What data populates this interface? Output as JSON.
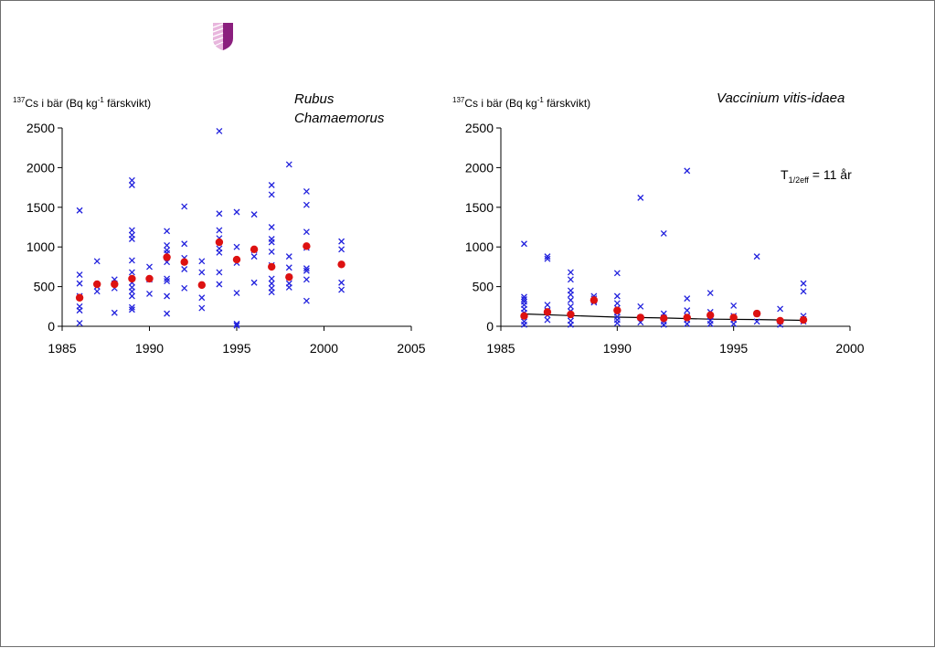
{
  "colors": {
    "individual_marker": "#2222dd",
    "mean_marker": "#dd1111",
    "fit_line": "#000000",
    "axis": "#000000",
    "logo_primary": "#8b1f7e",
    "logo_light": "#e8b6dd"
  },
  "logo": {
    "icon": "shield-logo"
  },
  "ylabel_parts": {
    "sup1": "137",
    "main": "Cs i bär (Bq kg",
    "sup2": "-1",
    "tail": " färskvikt)"
  },
  "chart_data": [
    {
      "type": "scatter",
      "title": "Rubus Chamaemorus",
      "title_lines": [
        "Rubus",
        "Chamaemorus"
      ],
      "ylabel": "137Cs i bär (Bq kg-1 färskvikt)",
      "xlim": [
        1985,
        2005
      ],
      "ylim": [
        0,
        2500
      ],
      "xticks": [
        1985,
        1990,
        1995,
        2000,
        2005
      ],
      "yticks": [
        0,
        500,
        1000,
        1500,
        2000,
        2500
      ],
      "grid": false,
      "series": [
        {
          "marker": "cross",
          "points": [
            [
              1986,
              1460
            ],
            [
              1986,
              650
            ],
            [
              1986,
              540
            ],
            [
              1986,
              380
            ],
            [
              1986,
              250
            ],
            [
              1986,
              200
            ],
            [
              1986,
              40
            ],
            [
              1987,
              820
            ],
            [
              1987,
              500
            ],
            [
              1987,
              440
            ],
            [
              1988,
              590
            ],
            [
              1988,
              540
            ],
            [
              1988,
              480
            ],
            [
              1988,
              170
            ],
            [
              1989,
              1840
            ],
            [
              1989,
              1780
            ],
            [
              1989,
              1210
            ],
            [
              1989,
              1150
            ],
            [
              1989,
              1100
            ],
            [
              1989,
              830
            ],
            [
              1989,
              680
            ],
            [
              1989,
              550
            ],
            [
              1989,
              490
            ],
            [
              1989,
              440
            ],
            [
              1989,
              380
            ],
            [
              1989,
              240
            ],
            [
              1989,
              210
            ],
            [
              1990,
              750
            ],
            [
              1990,
              590
            ],
            [
              1990,
              410
            ],
            [
              1991,
              1200
            ],
            [
              1991,
              1020
            ],
            [
              1991,
              960
            ],
            [
              1991,
              920
            ],
            [
              1991,
              810
            ],
            [
              1991,
              600
            ],
            [
              1991,
              570
            ],
            [
              1991,
              380
            ],
            [
              1991,
              160
            ],
            [
              1992,
              1510
            ],
            [
              1992,
              1040
            ],
            [
              1992,
              860
            ],
            [
              1992,
              720
            ],
            [
              1992,
              480
            ],
            [
              1993,
              820
            ],
            [
              1993,
              680
            ],
            [
              1993,
              360
            ],
            [
              1993,
              230
            ],
            [
              1994,
              2460
            ],
            [
              1994,
              1420
            ],
            [
              1994,
              1210
            ],
            [
              1994,
              1110
            ],
            [
              1994,
              980
            ],
            [
              1994,
              930
            ],
            [
              1994,
              680
            ],
            [
              1994,
              530
            ],
            [
              1995,
              1440
            ],
            [
              1995,
              1000
            ],
            [
              1995,
              800
            ],
            [
              1995,
              420
            ],
            [
              1995,
              30
            ],
            [
              1995,
              10
            ],
            [
              1996,
              1410
            ],
            [
              1996,
              960
            ],
            [
              1996,
              880
            ],
            [
              1996,
              550
            ],
            [
              1997,
              1780
            ],
            [
              1997,
              1660
            ],
            [
              1997,
              1250
            ],
            [
              1997,
              1100
            ],
            [
              1997,
              1060
            ],
            [
              1997,
              940
            ],
            [
              1997,
              770
            ],
            [
              1997,
              600
            ],
            [
              1997,
              540
            ],
            [
              1997,
              480
            ],
            [
              1997,
              430
            ],
            [
              1998,
              2040
            ],
            [
              1998,
              880
            ],
            [
              1998,
              740
            ],
            [
              1998,
              620
            ],
            [
              1998,
              540
            ],
            [
              1998,
              490
            ],
            [
              1999,
              1700
            ],
            [
              1999,
              1530
            ],
            [
              1999,
              1190
            ],
            [
              1999,
              990
            ],
            [
              1999,
              730
            ],
            [
              1999,
              700
            ],
            [
              1999,
              590
            ],
            [
              1999,
              320
            ],
            [
              2001,
              1070
            ],
            [
              2001,
              970
            ],
            [
              2001,
              550
            ],
            [
              2001,
              460
            ]
          ]
        },
        {
          "marker": "dot",
          "points": [
            [
              1986,
              360
            ],
            [
              1987,
              530
            ],
            [
              1988,
              530
            ],
            [
              1989,
              600
            ],
            [
              1990,
              600
            ],
            [
              1991,
              870
            ],
            [
              1992,
              810
            ],
            [
              1993,
              520
            ],
            [
              1994,
              1060
            ],
            [
              1995,
              840
            ],
            [
              1996,
              970
            ],
            [
              1997,
              750
            ],
            [
              1998,
              620
            ],
            [
              1999,
              1010
            ],
            [
              2001,
              780
            ]
          ]
        }
      ]
    },
    {
      "type": "scatter",
      "title": "Vaccinium vitis-idaea",
      "title_lines": [
        "Vaccinium vitis-idaea"
      ],
      "ylabel": "137Cs i bär (Bq kg-1 färskvikt)",
      "xlim": [
        1985,
        2000
      ],
      "ylim": [
        0,
        2500
      ],
      "xticks": [
        1985,
        1990,
        1995,
        2000
      ],
      "yticks": [
        0,
        500,
        1000,
        1500,
        2000,
        2500
      ],
      "grid": false,
      "annotation": {
        "main": "T",
        "sub": "1/2eff",
        "rest": " = 11 år"
      },
      "series": [
        {
          "marker": "cross",
          "points": [
            [
              1986,
              1040
            ],
            [
              1986,
              370
            ],
            [
              1986,
              340
            ],
            [
              1986,
              310
            ],
            [
              1986,
              270
            ],
            [
              1986,
              220
            ],
            [
              1986,
              170
            ],
            [
              1986,
              120
            ],
            [
              1986,
              60
            ],
            [
              1986,
              20
            ],
            [
              1987,
              880
            ],
            [
              1987,
              850
            ],
            [
              1987,
              270
            ],
            [
              1987,
              200
            ],
            [
              1987,
              140
            ],
            [
              1987,
              80
            ],
            [
              1988,
              680
            ],
            [
              1988,
              590
            ],
            [
              1988,
              450
            ],
            [
              1988,
              400
            ],
            [
              1988,
              330
            ],
            [
              1988,
              250
            ],
            [
              1988,
              190
            ],
            [
              1988,
              130
            ],
            [
              1988,
              70
            ],
            [
              1988,
              20
            ],
            [
              1989,
              380
            ],
            [
              1989,
              350
            ],
            [
              1989,
              320
            ],
            [
              1989,
              300
            ],
            [
              1990,
              670
            ],
            [
              1990,
              380
            ],
            [
              1990,
              290
            ],
            [
              1990,
              230
            ],
            [
              1990,
              170
            ],
            [
              1990,
              120
            ],
            [
              1990,
              80
            ],
            [
              1990,
              40
            ],
            [
              1991,
              1620
            ],
            [
              1991,
              250
            ],
            [
              1991,
              110
            ],
            [
              1991,
              50
            ],
            [
              1992,
              1170
            ],
            [
              1992,
              160
            ],
            [
              1992,
              110
            ],
            [
              1992,
              60
            ],
            [
              1992,
              20
            ],
            [
              1993,
              1960
            ],
            [
              1993,
              350
            ],
            [
              1993,
              200
            ],
            [
              1993,
              130
            ],
            [
              1993,
              80
            ],
            [
              1993,
              30
            ],
            [
              1994,
              420
            ],
            [
              1994,
              180
            ],
            [
              1994,
              120
            ],
            [
              1994,
              70
            ],
            [
              1994,
              30
            ],
            [
              1995,
              260
            ],
            [
              1995,
              130
            ],
            [
              1995,
              80
            ],
            [
              1995,
              30
            ],
            [
              1996,
              880
            ],
            [
              1996,
              160
            ],
            [
              1996,
              60
            ],
            [
              1997,
              220
            ],
            [
              1997,
              60
            ],
            [
              1997,
              20
            ],
            [
              1998,
              540
            ],
            [
              1998,
              440
            ],
            [
              1998,
              130
            ],
            [
              1998,
              90
            ],
            [
              1998,
              60
            ]
          ]
        },
        {
          "marker": "dot",
          "points": [
            [
              1986,
              130
            ],
            [
              1987,
              180
            ],
            [
              1988,
              150
            ],
            [
              1989,
              330
            ],
            [
              1990,
              200
            ],
            [
              1991,
              110
            ],
            [
              1992,
              100
            ],
            [
              1993,
              110
            ],
            [
              1994,
              140
            ],
            [
              1995,
              110
            ],
            [
              1996,
              160
            ],
            [
              1997,
              70
            ],
            [
              1998,
              80
            ]
          ]
        },
        {
          "marker": "line",
          "points": [
            [
              1986,
              155
            ],
            [
              1988,
              135
            ],
            [
              1990,
              115
            ],
            [
              1992,
              105
            ],
            [
              1994,
              90
            ],
            [
              1996,
              85
            ],
            [
              1998,
              75
            ]
          ]
        }
      ]
    }
  ]
}
